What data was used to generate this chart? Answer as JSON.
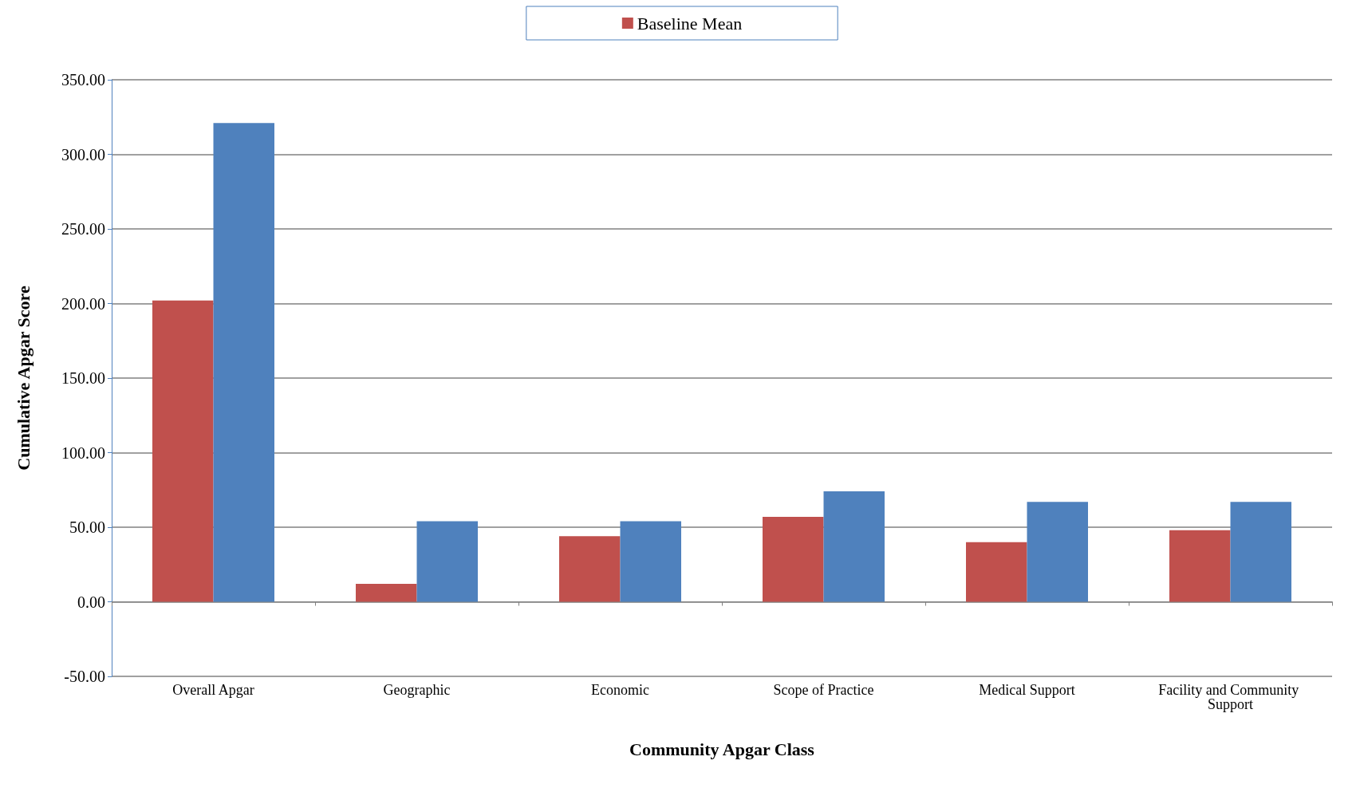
{
  "chart_data": {
    "type": "bar",
    "xlabel": "Community Apgar Class",
    "ylabel": "Cumulative Apgar Score",
    "categories": [
      "Overall Apgar",
      "Geographic",
      "Economic",
      "Scope of Practice",
      "Medical Support",
      "Facility and Community Support"
    ],
    "series": [
      {
        "name": "Baseline Mean",
        "color": "#c0504d",
        "values": [
          202,
          12,
          44,
          57,
          40,
          48
        ]
      },
      {
        "color": "#4f81bd",
        "values": [
          321,
          54,
          54,
          74,
          67,
          67
        ]
      }
    ],
    "ylim": [
      -50,
      350
    ],
    "yticks": [
      {
        "value": -50,
        "label": "-50.00"
      },
      {
        "value": 0,
        "label": "0.00"
      },
      {
        "value": 50,
        "label": "50.00"
      },
      {
        "value": 100,
        "label": "100.00"
      },
      {
        "value": 150,
        "label": "150.00"
      },
      {
        "value": 200,
        "label": "200.00"
      },
      {
        "value": 250,
        "label": "250.00"
      },
      {
        "value": 300,
        "label": "300.00"
      },
      {
        "value": 350,
        "label": "350.00"
      }
    ],
    "grid": "y",
    "legend": "top"
  }
}
